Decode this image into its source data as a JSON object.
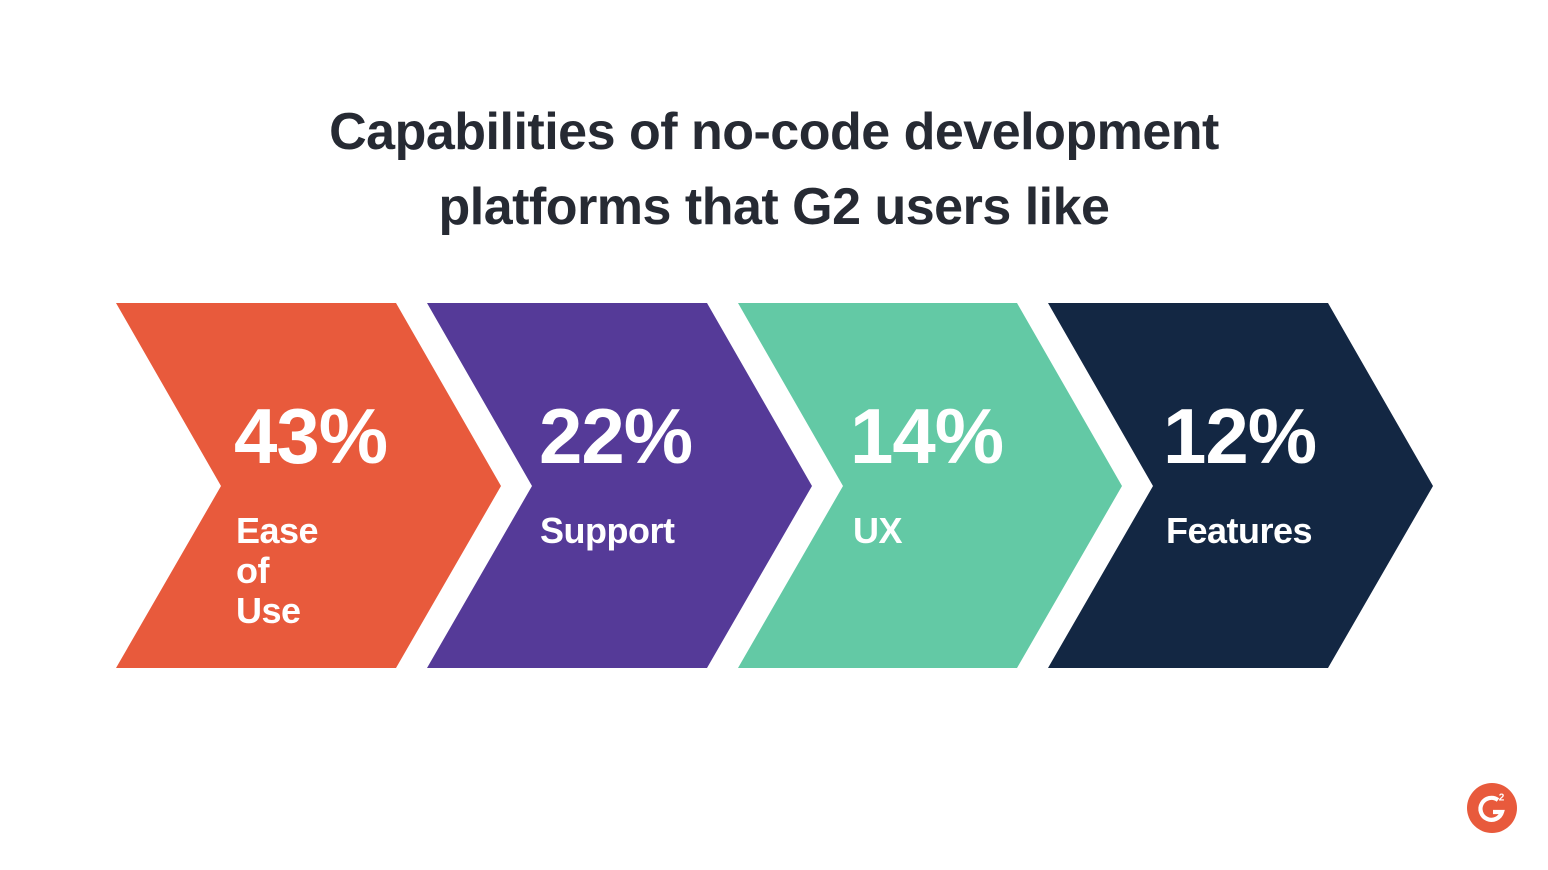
{
  "title": {
    "line1": "Capabilities of no-code development",
    "line2": "platforms that G2 users like"
  },
  "steps": [
    {
      "value": "43%",
      "label": "Ease of Use",
      "percent": 43,
      "color": "#e85a3c"
    },
    {
      "value": "22%",
      "label": "Support",
      "percent": 22,
      "color": "#553a98"
    },
    {
      "value": "14%",
      "label": "UX",
      "percent": 14,
      "color": "#63c9a5"
    },
    {
      "value": "12%",
      "label": "Features",
      "percent": 12,
      "color": "#132743"
    }
  ],
  "logo": {
    "icon": "g2-logo-icon",
    "text": "G2",
    "color": "#e85a3c"
  }
}
